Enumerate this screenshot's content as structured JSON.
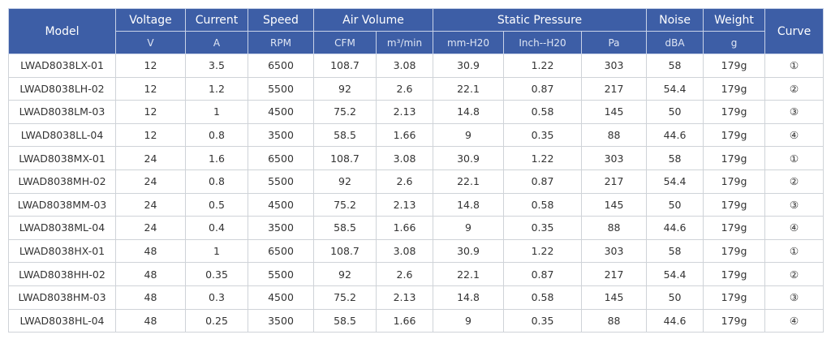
{
  "header": {
    "row1": [
      "Model",
      "Voltage",
      "Current",
      "Speed",
      "Air Volume",
      "Static Pressure",
      "Noise",
      "Weight",
      "Curve"
    ],
    "row2": [
      "V",
      "A",
      "RPM",
      "CFM",
      "m³/min",
      "mm-H20",
      "Inch--H20",
      "Pa",
      "dBA",
      "g"
    ]
  },
  "table": {
    "rows": [
      [
        "LWAD8038LX-01",
        "12",
        "3.5",
        "6500",
        "108.7",
        "3.08",
        "30.9",
        "1.22",
        "303",
        "58",
        "179g",
        "①"
      ],
      [
        "LWAD8038LH-02",
        "12",
        "1.2",
        "5500",
        "92",
        "2.6",
        "22.1",
        "0.87",
        "217",
        "54.4",
        "179g",
        "②"
      ],
      [
        "LWAD8038LM-03",
        "12",
        "1",
        "4500",
        "75.2",
        "2.13",
        "14.8",
        "0.58",
        "145",
        "50",
        "179g",
        "③"
      ],
      [
        "LWAD8038LL-04",
        "12",
        "0.8",
        "3500",
        "58.5",
        "1.66",
        "9",
        "0.35",
        "88",
        "44.6",
        "179g",
        "④"
      ],
      [
        "LWAD8038MX-01",
        "24",
        "1.6",
        "6500",
        "108.7",
        "3.08",
        "30.9",
        "1.22",
        "303",
        "58",
        "179g",
        "①"
      ],
      [
        "LWAD8038MH-02",
        "24",
        "0.8",
        "5500",
        "92",
        "2.6",
        "22.1",
        "0.87",
        "217",
        "54.4",
        "179g",
        "②"
      ],
      [
        "LWAD8038MM-03",
        "24",
        "0.5",
        "4500",
        "75.2",
        "2.13",
        "14.8",
        "0.58",
        "145",
        "50",
        "179g",
        "③"
      ],
      [
        "LWAD8038ML-04",
        "24",
        "0.4",
        "3500",
        "58.5",
        "1.66",
        "9",
        "0.35",
        "88",
        "44.6",
        "179g",
        "④"
      ],
      [
        "LWAD8038HX-01",
        "48",
        "1",
        "6500",
        "108.7",
        "3.08",
        "30.9",
        "1.22",
        "303",
        "58",
        "179g",
        "①"
      ],
      [
        "LWAD8038HH-02",
        "48",
        "0.35",
        "5500",
        "92",
        "2.6",
        "22.1",
        "0.87",
        "217",
        "54.4",
        "179g",
        "②"
      ],
      [
        "LWAD8038HM-03",
        "48",
        "0.3",
        "4500",
        "75.2",
        "2.13",
        "14.8",
        "0.58",
        "145",
        "50",
        "179g",
        "③"
      ],
      [
        "LWAD8038HL-04",
        "48",
        "0.25",
        "3500",
        "58.5",
        "1.66",
        "9",
        "0.35",
        "88",
        "44.6",
        "179g",
        "④"
      ]
    ]
  }
}
